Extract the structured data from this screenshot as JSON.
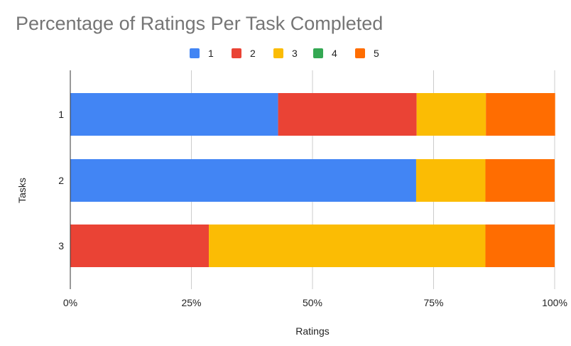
{
  "chart_data": {
    "type": "bar",
    "orientation": "horizontal",
    "stacking": "percent",
    "title": "Percentage of Ratings Per Task Completed",
    "xlabel": "Ratings",
    "ylabel": "Tasks",
    "categories": [
      "1",
      "2",
      "3"
    ],
    "x_ticks": [
      "0%",
      "25%",
      "50%",
      "75%",
      "100%"
    ],
    "xlim": [
      0,
      100
    ],
    "grid": true,
    "legend_position": "top",
    "series": [
      {
        "name": "1",
        "color": "#4285f4",
        "values": [
          42.9,
          71.4,
          0
        ]
      },
      {
        "name": "2",
        "color": "#ea4335",
        "values": [
          28.6,
          0,
          28.6
        ]
      },
      {
        "name": "3",
        "color": "#fbbc04",
        "values": [
          14.3,
          14.3,
          57.1
        ]
      },
      {
        "name": "4",
        "color": "#34a853",
        "values": [
          0,
          0,
          0
        ]
      },
      {
        "name": "5",
        "color": "#ff6d01",
        "values": [
          14.3,
          14.3,
          14.3
        ]
      }
    ]
  }
}
